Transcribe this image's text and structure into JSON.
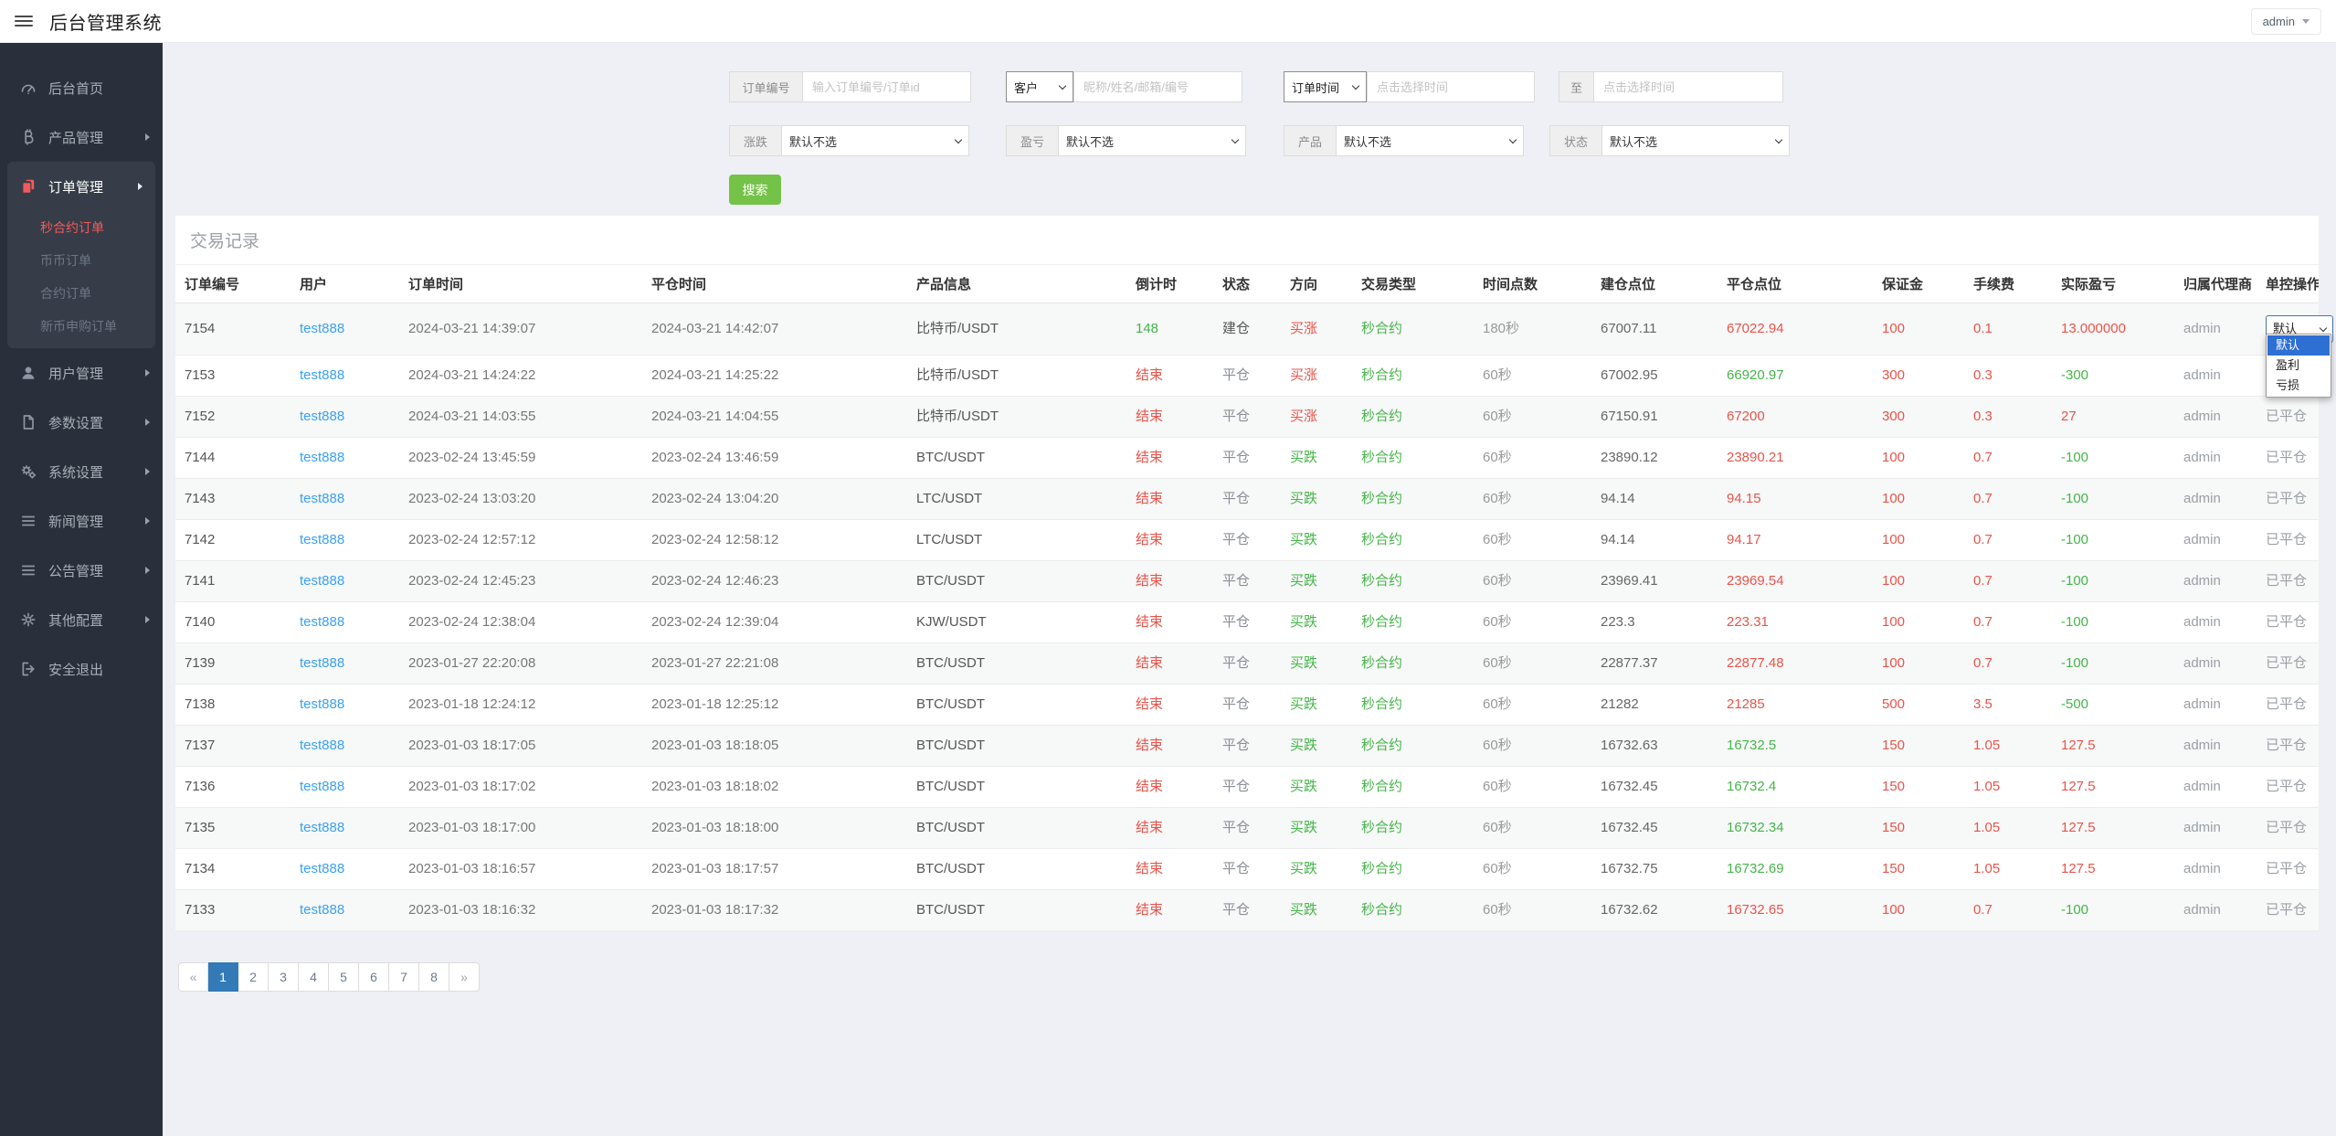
{
  "header": {
    "title": "后台管理系统",
    "user": "admin"
  },
  "colors": {
    "red": "#e8544b",
    "green": "#44b549",
    "link_blue": "#3ba1f2",
    "sidebar_red": "#f25a5a",
    "button_green": "#74c247",
    "pagination_blue": "#337ab7",
    "dropdown_highlight": "#2e6fd4"
  },
  "sidebar": {
    "items": [
      {
        "slug": "home",
        "label": "后台首页",
        "icon": "dashboard",
        "arrow": false
      },
      {
        "slug": "product",
        "label": "产品管理",
        "icon": "bitcoin",
        "arrow": true
      },
      {
        "slug": "orders",
        "label": "订单管理",
        "icon": "orders",
        "arrow": true,
        "active": true,
        "children": [
          {
            "slug": "seconds-contract-orders",
            "label": "秒合约订单",
            "active": true
          },
          {
            "slug": "coin-orders",
            "label": "币币订单",
            "active": false
          },
          {
            "slug": "contract-orders",
            "label": "合约订单",
            "active": false
          },
          {
            "slug": "new-coin-subscribe-orders",
            "label": "新币申购订单",
            "active": false
          }
        ]
      },
      {
        "slug": "users",
        "label": "用户管理",
        "icon": "user",
        "arrow": true
      },
      {
        "slug": "params",
        "label": "参数设置",
        "icon": "file",
        "arrow": true
      },
      {
        "slug": "system",
        "label": "系统设置",
        "icon": "gears",
        "arrow": true
      },
      {
        "slug": "news",
        "label": "新闻管理",
        "icon": "list",
        "arrow": true
      },
      {
        "slug": "notice",
        "label": "公告管理",
        "icon": "list",
        "arrow": true
      },
      {
        "slug": "other",
        "label": "其他配置",
        "icon": "gear",
        "arrow": true
      },
      {
        "slug": "logout",
        "label": "安全退出",
        "icon": "logout",
        "arrow": false
      }
    ]
  },
  "filters": {
    "order_no": {
      "label": "订单编号",
      "placeholder": "输入订单编号/订单id"
    },
    "customer": {
      "select": "客户",
      "placeholder": "昵称/姓名/邮箱/编号"
    },
    "time": {
      "select": "订单时间",
      "from_placeholder": "点击选择时间",
      "to_label": "至",
      "to_placeholder": "点击选择时间"
    },
    "updown": {
      "label": "涨跌",
      "value": "默认不选"
    },
    "pnl": {
      "label": "盈亏",
      "value": "默认不选"
    },
    "product": {
      "label": "产品",
      "value": "默认不选"
    },
    "status": {
      "label": "状态",
      "value": "默认不选"
    },
    "search": "搜索"
  },
  "panel": {
    "title": "交易记录"
  },
  "control_dropdown": {
    "value": "默认",
    "selected": "默认",
    "options": [
      "默认",
      "盈利",
      "亏损"
    ]
  },
  "table": {
    "columns": [
      "订单编号",
      "用户",
      "订单时间",
      "平仓时间",
      "产品信息",
      "倒计时",
      "状态",
      "方向",
      "交易类型",
      "时间点数",
      "建仓点位",
      "平仓点位",
      "保证金",
      "手续费",
      "实际盈亏",
      "归属代理商",
      "单控操作"
    ],
    "rows": [
      {
        "id": "7154",
        "user": "test888",
        "order_time": "2024-03-21 14:39:07",
        "close_time": "2024-03-21 14:42:07",
        "product": "比特币/USDT",
        "countdown": "148",
        "status": "建仓",
        "direction": "买涨",
        "trade_type": "秒合约",
        "duration": "180秒",
        "open_price": "67007.11",
        "close_price": "67022.94",
        "margin": "100",
        "fee": "0.1",
        "pnl": "13.000000",
        "agent": "admin",
        "op": "默认",
        "op_type": "select"
      },
      {
        "id": "7153",
        "user": "test888",
        "order_time": "2024-03-21 14:24:22",
        "close_time": "2024-03-21 14:25:22",
        "product": "比特币/USDT",
        "countdown": "结束",
        "status": "平仓",
        "direction": "买涨",
        "trade_type": "秒合约",
        "duration": "60秒",
        "open_price": "67002.95",
        "close_price": "66920.97",
        "margin": "300",
        "fee": "0.3",
        "pnl": "-300",
        "agent": "admin",
        "op": "已平仓",
        "op_type": "text"
      },
      {
        "id": "7152",
        "user": "test888",
        "order_time": "2024-03-21 14:03:55",
        "close_time": "2024-03-21 14:04:55",
        "product": "比特币/USDT",
        "countdown": "结束",
        "status": "平仓",
        "direction": "买涨",
        "trade_type": "秒合约",
        "duration": "60秒",
        "open_price": "67150.91",
        "close_price": "67200",
        "margin": "300",
        "fee": "0.3",
        "pnl": "27",
        "agent": "admin",
        "op": "已平仓",
        "op_type": "text"
      },
      {
        "id": "7144",
        "user": "test888",
        "order_time": "2023-02-24 13:45:59",
        "close_time": "2023-02-24 13:46:59",
        "product": "BTC/USDT",
        "countdown": "结束",
        "status": "平仓",
        "direction": "买跌",
        "trade_type": "秒合约",
        "duration": "60秒",
        "open_price": "23890.12",
        "close_price": "23890.21",
        "margin": "100",
        "fee": "0.7",
        "pnl": "-100",
        "agent": "admin",
        "op": "已平仓",
        "op_type": "text"
      },
      {
        "id": "7143",
        "user": "test888",
        "order_time": "2023-02-24 13:03:20",
        "close_time": "2023-02-24 13:04:20",
        "product": "LTC/USDT",
        "countdown": "结束",
        "status": "平仓",
        "direction": "买跌",
        "trade_type": "秒合约",
        "duration": "60秒",
        "open_price": "94.14",
        "close_price": "94.15",
        "margin": "100",
        "fee": "0.7",
        "pnl": "-100",
        "agent": "admin",
        "op": "已平仓",
        "op_type": "text"
      },
      {
        "id": "7142",
        "user": "test888",
        "order_time": "2023-02-24 12:57:12",
        "close_time": "2023-02-24 12:58:12",
        "product": "LTC/USDT",
        "countdown": "结束",
        "status": "平仓",
        "direction": "买跌",
        "trade_type": "秒合约",
        "duration": "60秒",
        "open_price": "94.14",
        "close_price": "94.17",
        "margin": "100",
        "fee": "0.7",
        "pnl": "-100",
        "agent": "admin",
        "op": "已平仓",
        "op_type": "text"
      },
      {
        "id": "7141",
        "user": "test888",
        "order_time": "2023-02-24 12:45:23",
        "close_time": "2023-02-24 12:46:23",
        "product": "BTC/USDT",
        "countdown": "结束",
        "status": "平仓",
        "direction": "买跌",
        "trade_type": "秒合约",
        "duration": "60秒",
        "open_price": "23969.41",
        "close_price": "23969.54",
        "margin": "100",
        "fee": "0.7",
        "pnl": "-100",
        "agent": "admin",
        "op": "已平仓",
        "op_type": "text"
      },
      {
        "id": "7140",
        "user": "test888",
        "order_time": "2023-02-24 12:38:04",
        "close_time": "2023-02-24 12:39:04",
        "product": "KJW/USDT",
        "countdown": "结束",
        "status": "平仓",
        "direction": "买跌",
        "trade_type": "秒合约",
        "duration": "60秒",
        "open_price": "223.3",
        "close_price": "223.31",
        "margin": "100",
        "fee": "0.7",
        "pnl": "-100",
        "agent": "admin",
        "op": "已平仓",
        "op_type": "text"
      },
      {
        "id": "7139",
        "user": "test888",
        "order_time": "2023-01-27 22:20:08",
        "close_time": "2023-01-27 22:21:08",
        "product": "BTC/USDT",
        "countdown": "结束",
        "status": "平仓",
        "direction": "买跌",
        "trade_type": "秒合约",
        "duration": "60秒",
        "open_price": "22877.37",
        "close_price": "22877.48",
        "margin": "100",
        "fee": "0.7",
        "pnl": "-100",
        "agent": "admin",
        "op": "已平仓",
        "op_type": "text"
      },
      {
        "id": "7138",
        "user": "test888",
        "order_time": "2023-01-18 12:24:12",
        "close_time": "2023-01-18 12:25:12",
        "product": "BTC/USDT",
        "countdown": "结束",
        "status": "平仓",
        "direction": "买跌",
        "trade_type": "秒合约",
        "duration": "60秒",
        "open_price": "21282",
        "close_price": "21285",
        "margin": "500",
        "fee": "3.5",
        "pnl": "-500",
        "agent": "admin",
        "op": "已平仓",
        "op_type": "text"
      },
      {
        "id": "7137",
        "user": "test888",
        "order_time": "2023-01-03 18:17:05",
        "close_time": "2023-01-03 18:18:05",
        "product": "BTC/USDT",
        "countdown": "结束",
        "status": "平仓",
        "direction": "买跌",
        "trade_type": "秒合约",
        "duration": "60秒",
        "open_price": "16732.63",
        "close_price": "16732.5",
        "margin": "150",
        "fee": "1.05",
        "pnl": "127.5",
        "agent": "admin",
        "op": "已平仓",
        "op_type": "text"
      },
      {
        "id": "7136",
        "user": "test888",
        "order_time": "2023-01-03 18:17:02",
        "close_time": "2023-01-03 18:18:02",
        "product": "BTC/USDT",
        "countdown": "结束",
        "status": "平仓",
        "direction": "买跌",
        "trade_type": "秒合约",
        "duration": "60秒",
        "open_price": "16732.45",
        "close_price": "16732.4",
        "margin": "150",
        "fee": "1.05",
        "pnl": "127.5",
        "agent": "admin",
        "op": "已平仓",
        "op_type": "text"
      },
      {
        "id": "7135",
        "user": "test888",
        "order_time": "2023-01-03 18:17:00",
        "close_time": "2023-01-03 18:18:00",
        "product": "BTC/USDT",
        "countdown": "结束",
        "status": "平仓",
        "direction": "买跌",
        "trade_type": "秒合约",
        "duration": "60秒",
        "open_price": "16732.45",
        "close_price": "16732.34",
        "margin": "150",
        "fee": "1.05",
        "pnl": "127.5",
        "agent": "admin",
        "op": "已平仓",
        "op_type": "text"
      },
      {
        "id": "7134",
        "user": "test888",
        "order_time": "2023-01-03 18:16:57",
        "close_time": "2023-01-03 18:17:57",
        "product": "BTC/USDT",
        "countdown": "结束",
        "status": "平仓",
        "direction": "买跌",
        "trade_type": "秒合约",
        "duration": "60秒",
        "open_price": "16732.75",
        "close_price": "16732.69",
        "margin": "150",
        "fee": "1.05",
        "pnl": "127.5",
        "agent": "admin",
        "op": "已平仓",
        "op_type": "text"
      },
      {
        "id": "7133",
        "user": "test888",
        "order_time": "2023-01-03 18:16:32",
        "close_time": "2023-01-03 18:17:32",
        "product": "BTC/USDT",
        "countdown": "结束",
        "status": "平仓",
        "direction": "买跌",
        "trade_type": "秒合约",
        "duration": "60秒",
        "open_price": "16732.62",
        "close_price": "16732.65",
        "margin": "100",
        "fee": "0.7",
        "pnl": "-100",
        "agent": "admin",
        "op": "已平仓",
        "op_type": "text"
      }
    ]
  },
  "pagination": {
    "prev": "«",
    "next": "»",
    "active": "1",
    "pages": [
      "1",
      "2",
      "3",
      "4",
      "5",
      "6",
      "7",
      "8"
    ]
  }
}
